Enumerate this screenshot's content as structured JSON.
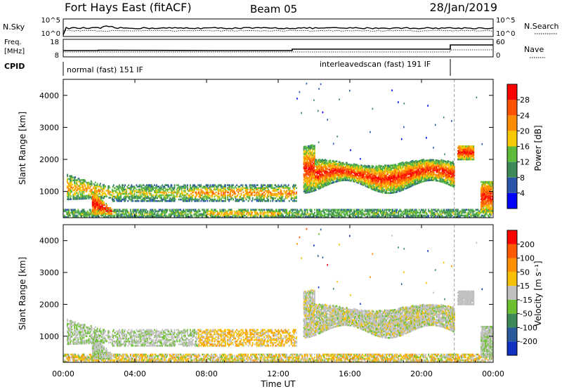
{
  "header": {
    "title": "Fort Hays East (fitACF)",
    "beam": "Beam 05",
    "date": "28/Jan/2019"
  },
  "noise_panel": {
    "left_label": "N.Sky",
    "right_label": "N.Search",
    "left_ticks": [
      "10^5",
      "10^0"
    ],
    "right_ticks": [
      "10^5",
      "10^0"
    ]
  },
  "freq_panel": {
    "left_label_1": "Freq.",
    "left_label_2": "[MHz]",
    "right_label": "Nave",
    "left_ticks": [
      "18",
      "8"
    ],
    "right_ticks": [
      "60",
      "0"
    ]
  },
  "cpid_panel": {
    "label": "CPID",
    "mode_1": "normal (fast) 151 IF",
    "mode_2": "interleavedscan (fast) 191 IF"
  },
  "x_axis": {
    "label": "Time UT",
    "ticks": [
      "00:00",
      "04:00",
      "08:00",
      "12:00",
      "16:00",
      "20:00",
      "00:00"
    ]
  },
  "power_panel": {
    "ylabel": "Slant Range [km]",
    "yticks": [
      "1000",
      "2000",
      "3000",
      "4000"
    ],
    "colorbar_label": "Power [dB]",
    "colorbar_ticks": [
      "4",
      "8",
      "12",
      "16",
      "20",
      "24",
      "28"
    ],
    "colors": [
      "#0000ff",
      "#2b55aa",
      "#3c8a5a",
      "#5dbb3c",
      "#f5c800",
      "#ff8c00",
      "#ff5000",
      "#ff0000"
    ]
  },
  "velocity_panel": {
    "ylabel": "Slant Range [km]",
    "yticks": [
      "1000",
      "2000",
      "3000",
      "4000"
    ],
    "colorbar_label": "Velocity [m s⁻¹]",
    "colorbar_ticks": [
      "200",
      "100",
      "50",
      "15",
      "-15",
      "-50",
      "-100",
      "-200"
    ],
    "colors": [
      "#1030c0",
      "#2a5a9a",
      "#3c8a5a",
      "#6cc030",
      "#c0c0c0",
      "#f5c000",
      "#ff9000",
      "#ff5a00",
      "#ff0000"
    ]
  },
  "chart_data": {
    "type": "heatmap",
    "time_range_hours": [
      0,
      24
    ],
    "range_axis_km": [
      180,
      4500
    ],
    "mode_change_time": "21:50",
    "echo_regions": [
      {
        "panel": "power",
        "start": "00:00",
        "end": "02:40",
        "range_km": [
          800,
          1650
        ],
        "level": "medium"
      },
      {
        "panel": "power",
        "start": "01:30",
        "end": "02:40",
        "range_km": [
          300,
          900
        ],
        "level": "high"
      },
      {
        "panel": "power",
        "start": "02:40",
        "end": "13:00",
        "range_km": [
          700,
          1200
        ],
        "level": "medium-high"
      },
      {
        "panel": "power",
        "start": "00:00",
        "end": "24:00",
        "range_km": [
          200,
          450
        ],
        "level": "medium"
      },
      {
        "panel": "power",
        "start": "13:30",
        "end": "21:50",
        "range_km": [
          1100,
          2350
        ],
        "level": "high"
      },
      {
        "panel": "power",
        "start": "22:00",
        "end": "22:50",
        "range_km": [
          2000,
          2400
        ],
        "level": "medium-high"
      },
      {
        "panel": "power",
        "start": "23:20",
        "end": "24:00",
        "range_km": [
          400,
          1300
        ],
        "level": "high"
      },
      {
        "panel": "velocity",
        "start": "00:00",
        "end": "02:40",
        "range_km": [
          700,
          1650
        ],
        "level": "green/grey"
      },
      {
        "panel": "velocity",
        "start": "07:30",
        "end": "13:00",
        "range_km": [
          700,
          1200
        ],
        "level": "orange (-50)"
      },
      {
        "panel": "velocity",
        "start": "13:30",
        "end": "21:50",
        "range_km": [
          1100,
          2350
        ],
        "level": "grey (|v|<15)"
      },
      {
        "panel": "velocity",
        "start": "02:40",
        "end": "24:00",
        "range_km": [
          200,
          500
        ],
        "level": "orange/grey"
      }
    ]
  }
}
